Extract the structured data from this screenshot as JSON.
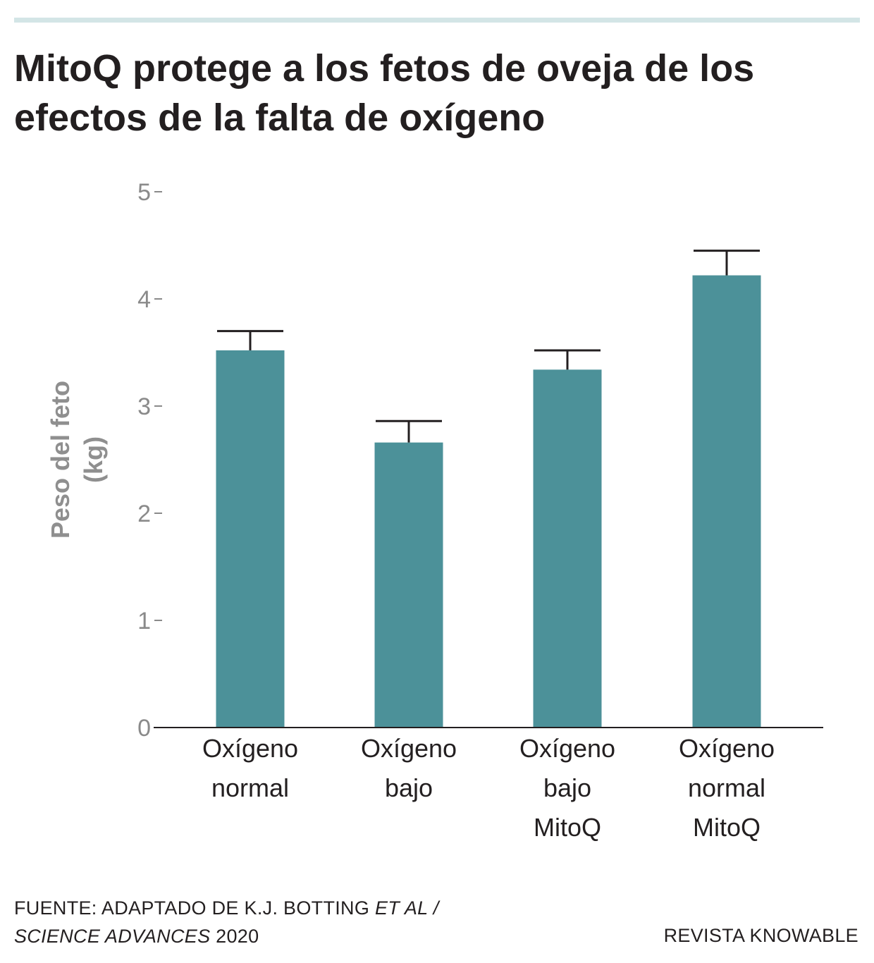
{
  "header": {
    "title": "MitoQ protege a los fetos de oveja de los efectos de la falta de oxígeno"
  },
  "colors": {
    "bar": "#4c9199",
    "error_bar": "#231f20",
    "axis": "#231f20",
    "tick_label": "#8a8a8a",
    "top_rule": "#d3e5e6"
  },
  "chart_data": {
    "type": "bar",
    "ylabel_lines": [
      "Peso del feto",
      "(kg)"
    ],
    "ylim": [
      0,
      5
    ],
    "yticks": [
      0,
      1,
      2,
      3,
      4,
      5
    ],
    "grid": false,
    "categories": [
      [
        "Oxígeno",
        "normal"
      ],
      [
        "Oxígeno",
        "bajo"
      ],
      [
        "Oxígeno",
        "bajo",
        "MitoQ"
      ],
      [
        "Oxígeno",
        "normal",
        "MitoQ"
      ]
    ],
    "values": [
      3.52,
      2.66,
      3.34,
      4.22
    ],
    "error_upper": [
      3.7,
      2.86,
      3.52,
      4.45
    ]
  },
  "footer": {
    "source_plain_1": "FUENTE: ADAPTADO DE K.J. BOTTING ",
    "source_italic_1": "ET AL /",
    "source_italic_2": "SCIENCE ADVANCES",
    "source_plain_2": " 2020",
    "credit": "REVISTA KNOWABLE"
  }
}
